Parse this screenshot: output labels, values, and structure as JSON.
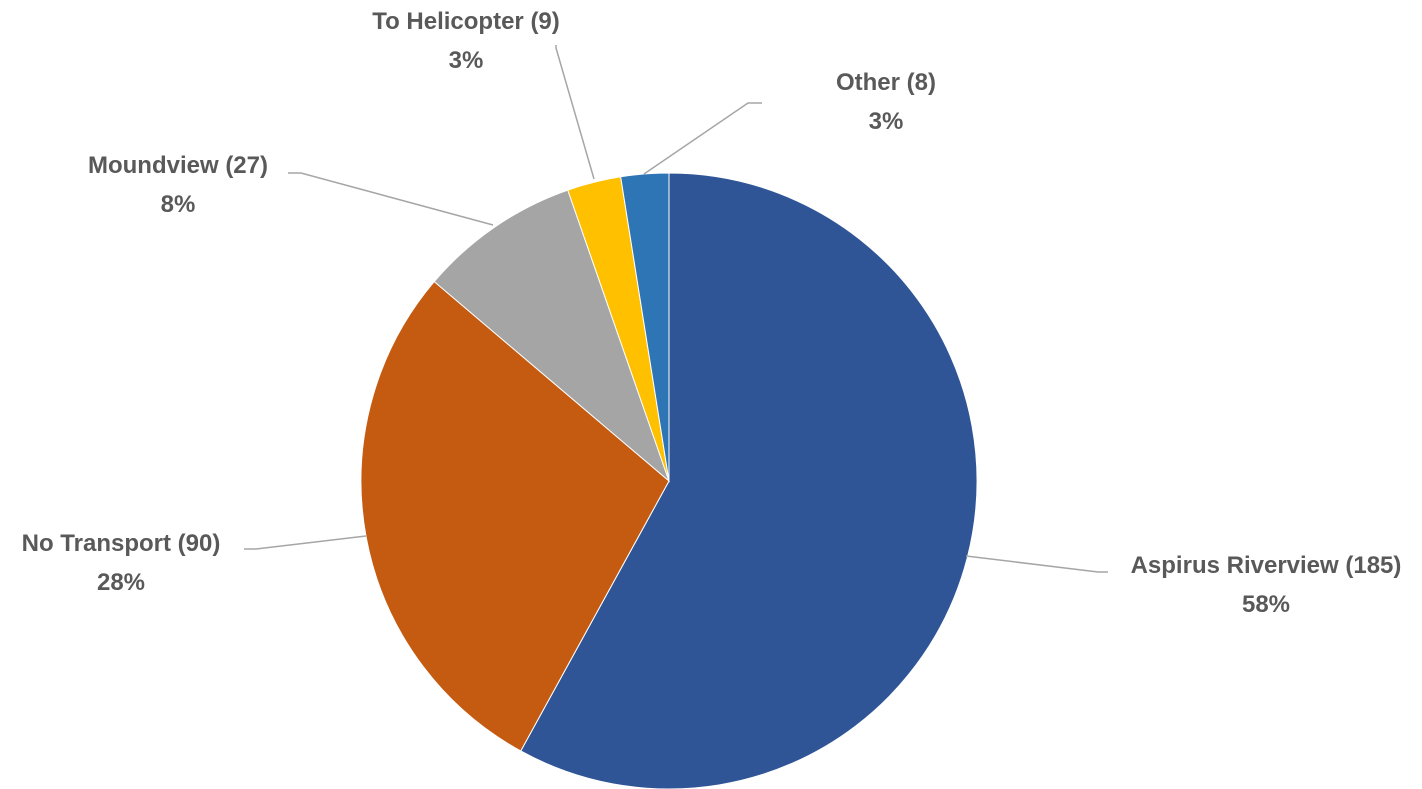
{
  "chart_data": {
    "type": "pie",
    "title": "",
    "slices": [
      {
        "label": "Aspirus Riverview (185)",
        "value": 185,
        "percent": "58%",
        "color": "#2f5597"
      },
      {
        "label": "No Transport (90)",
        "value": 90,
        "percent": "28%",
        "color": "#c55a11"
      },
      {
        "label": "Moundview (27)",
        "value": 27,
        "percent": "8%",
        "color": "#a5a5a5"
      },
      {
        "label": "To Helicopter (9)",
        "value": 9,
        "percent": "3%",
        "color": "#ffc000"
      },
      {
        "label": "Other (8)",
        "value": 8,
        "percent": "3%",
        "color": "#2e75b6"
      }
    ]
  }
}
